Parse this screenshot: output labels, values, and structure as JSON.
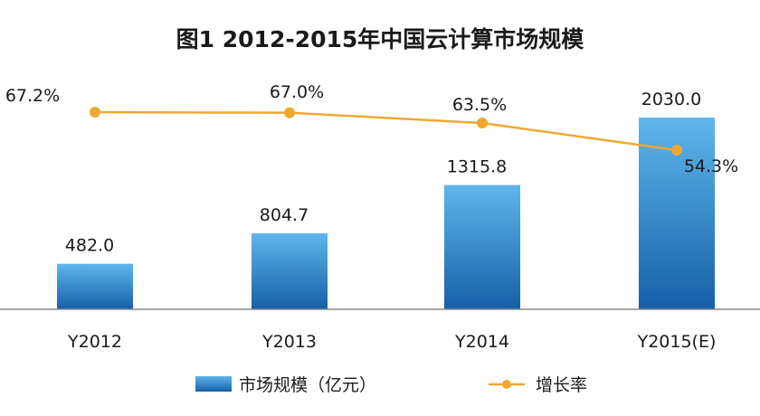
{
  "chart_data": {
    "type": "bar",
    "title": "图1 2012-2015年中国云计算市场规模",
    "categories": [
      "Y2012",
      "Y2013",
      "Y2014",
      "Y2015(E)"
    ],
    "series": [
      {
        "name": "市场规模（亿元）",
        "type": "bar",
        "values": [
          482.0,
          804.7,
          1315.8,
          2030.0
        ],
        "labels": [
          "482.0",
          "804.7",
          "1315.8",
          "2030.0"
        ],
        "color": "#2e7fc1"
      },
      {
        "name": "增长率",
        "type": "line",
        "values": [
          67.2,
          67.0,
          63.5,
          54.3
        ],
        "labels": [
          "67.2%",
          "67.0%",
          "63.5%",
          "54.3%"
        ],
        "color": "#f0a830"
      }
    ],
    "bar_ylim": [
      0,
      2200
    ],
    "line_ylim": [
      0,
      80
    ],
    "grid": false,
    "legend": "bottom-center"
  }
}
